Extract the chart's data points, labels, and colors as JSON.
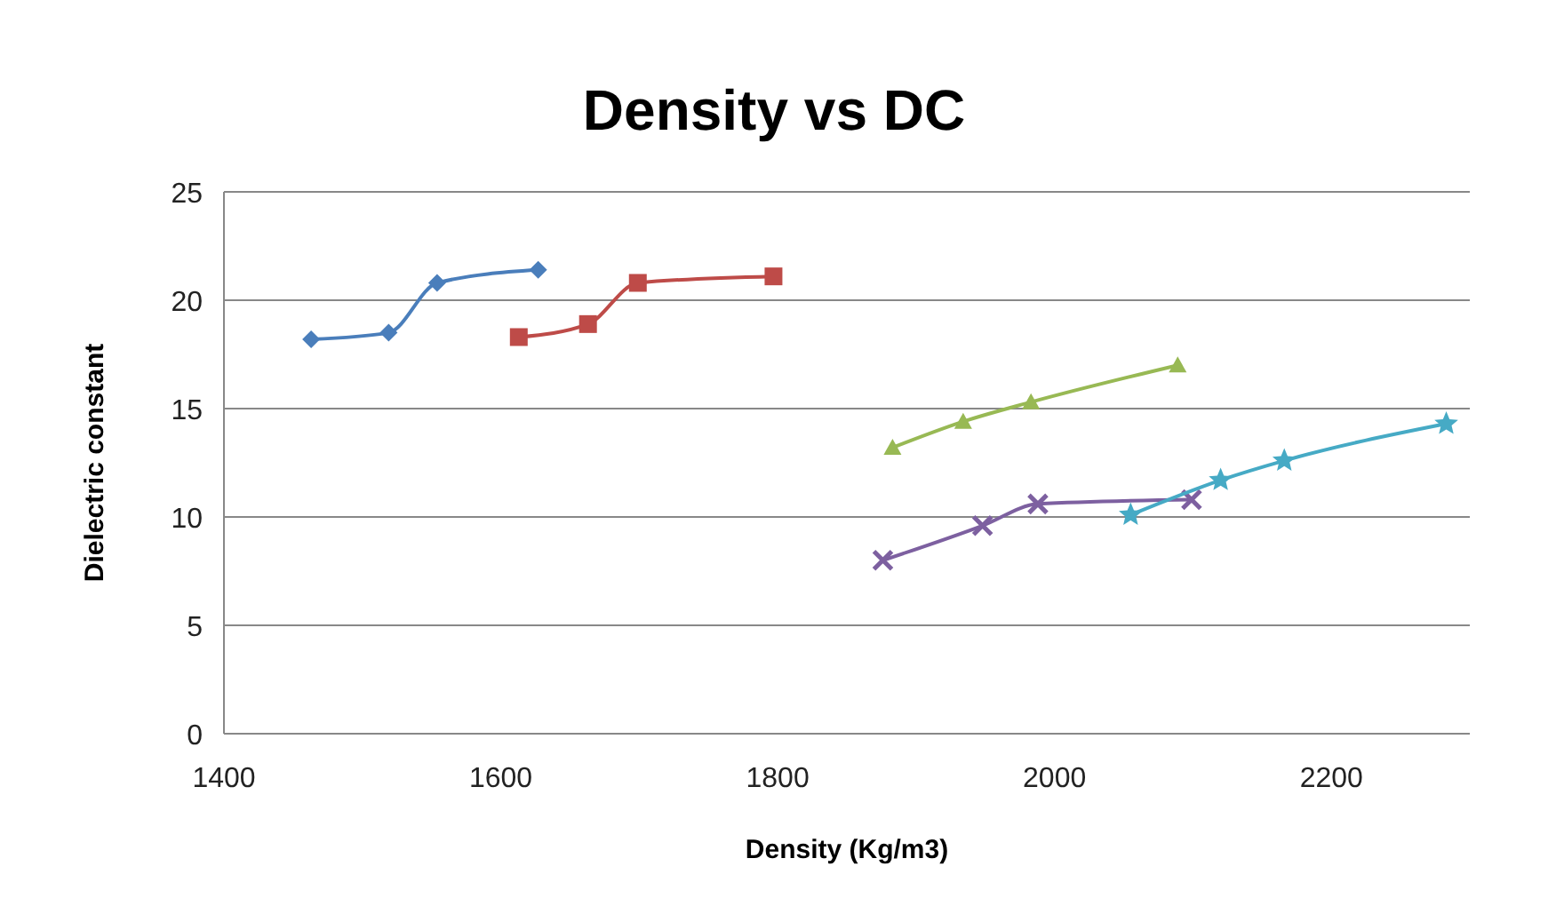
{
  "chart_data": {
    "type": "line",
    "title": "Density vs DC",
    "xlabel": "Density (Kg/m3)",
    "ylabel": "Dielectric constant",
    "xlim": [
      1400,
      2300
    ],
    "xticks": [
      1400,
      1600,
      1800,
      2000,
      2200
    ],
    "ylim": [
      0,
      25
    ],
    "yticks": [
      0,
      5,
      10,
      15,
      20,
      25
    ],
    "grid": "y",
    "line_style": "solid",
    "series": [
      {
        "color": "#4a7ebb",
        "marker": "diamond",
        "x": [
          1463,
          1519,
          1554,
          1627
        ],
        "values": [
          18.2,
          18.5,
          20.8,
          21.4
        ]
      },
      {
        "color": "#be4b48",
        "marker": "square",
        "x": [
          1613,
          1663,
          1699,
          1797
        ],
        "values": [
          18.3,
          18.9,
          20.8,
          21.1
        ]
      },
      {
        "color": "#98b954",
        "marker": "triangle",
        "x": [
          1883,
          1934,
          1983,
          2089
        ],
        "values": [
          13.2,
          14.4,
          15.3,
          17.0
        ]
      },
      {
        "color": "#7d60a0",
        "marker": "cross",
        "x": [
          1876,
          1948,
          1988,
          2099
        ],
        "values": [
          8.0,
          9.6,
          10.6,
          10.8
        ]
      },
      {
        "color": "#46aac5",
        "marker": "star",
        "x": [
          2055,
          2120,
          2166,
          2283
        ],
        "values": [
          10.1,
          11.7,
          12.6,
          14.3
        ]
      }
    ]
  }
}
